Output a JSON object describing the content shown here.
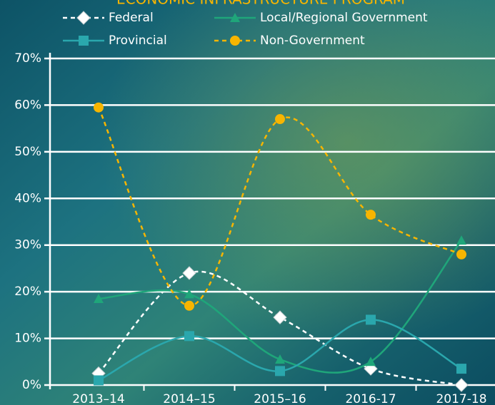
{
  "chart_data": {
    "type": "line",
    "title": "ECONOMIC INFRASTRUCTURE PROGRAM",
    "categories": [
      "2013–14",
      "2014–15",
      "2015–16",
      "2016-17",
      "2017-18"
    ],
    "series": [
      {
        "name": "Federal",
        "color": "#ffffff",
        "marker": "diamond",
        "dashed": true,
        "values": [
          2.5,
          24,
          14.5,
          3.5,
          0
        ]
      },
      {
        "name": "Local/Regional Government",
        "color": "#1fa67a",
        "marker": "triangle",
        "dashed": false,
        "values": [
          18.5,
          19.5,
          5.5,
          5,
          31
        ]
      },
      {
        "name": "Provincial",
        "color": "#2aa7ad",
        "marker": "square",
        "dashed": false,
        "values": [
          1,
          10.5,
          3,
          14,
          3.5
        ]
      },
      {
        "name": "Non-Government",
        "color": "#f7b500",
        "marker": "circle",
        "dashed": true,
        "values": [
          59.5,
          17,
          57,
          36.5,
          28
        ]
      }
    ],
    "ylim": [
      0,
      70
    ],
    "yticks": [
      {
        "value": 0,
        "label": "0%"
      },
      {
        "value": 10,
        "label": "10%"
      },
      {
        "value": 20,
        "label": "20%"
      },
      {
        "value": 30,
        "label": "30%"
      },
      {
        "value": 40,
        "label": "40%"
      },
      {
        "value": 50,
        "label": "50%"
      },
      {
        "value": 60,
        "label": "60%"
      },
      {
        "value": 70,
        "label": "70%"
      }
    ],
    "grid": true,
    "smooth": true
  }
}
